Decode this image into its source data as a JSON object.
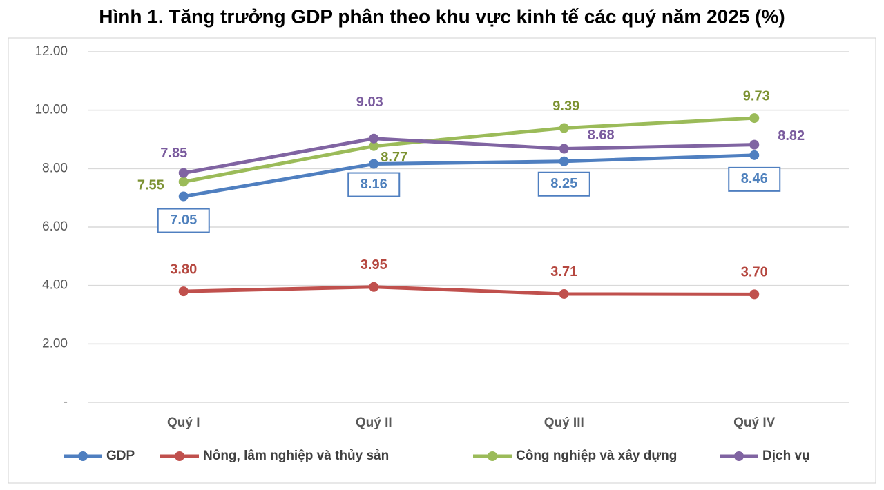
{
  "chart_data": {
    "type": "line",
    "title": "Hình 1. Tăng trưởng GDP phân theo khu vực kinh tế các quý năm 2025 (%)",
    "categories": [
      "Quý I",
      "Quý II",
      "Quý III",
      "Quý IV"
    ],
    "ylim": [
      0,
      12
    ],
    "yticks": [
      {
        "value": 0,
        "label": "-"
      },
      {
        "value": 2,
        "label": "2.00"
      },
      {
        "value": 4,
        "label": "4.00"
      },
      {
        "value": 6,
        "label": "6.00"
      },
      {
        "value": 8,
        "label": "8.00"
      },
      {
        "value": 10,
        "label": "10.00"
      },
      {
        "value": 12,
        "label": "12.00"
      }
    ],
    "grid": true,
    "series": [
      {
        "name": "GDP",
        "color": "#4f7fc0",
        "values": [
          7.05,
          8.16,
          8.25,
          8.46
        ],
        "value_labels": [
          "7.05",
          "8.16",
          "8.25",
          "8.46"
        ]
      },
      {
        "name": "Nông, lâm nghiệp và thủy sản",
        "color": "#c0504d",
        "values": [
          3.8,
          3.95,
          3.71,
          3.7
        ],
        "value_labels": [
          "3.80",
          "3.95",
          "3.71",
          "3.70"
        ]
      },
      {
        "name": "Công nghiệp và xây dựng",
        "color": "#9bbb59",
        "values": [
          7.55,
          8.77,
          9.39,
          9.73
        ],
        "value_labels": [
          "7.55",
          "8.77",
          "9.39",
          "9.73"
        ]
      },
      {
        "name": "Dịch vụ",
        "color": "#8064a2",
        "values": [
          7.85,
          9.03,
          8.68,
          8.82
        ],
        "value_labels": [
          "7.85",
          "9.03",
          "8.68",
          "8.82"
        ]
      }
    ]
  }
}
